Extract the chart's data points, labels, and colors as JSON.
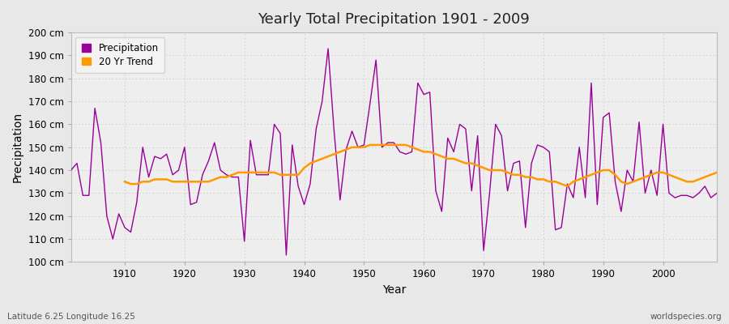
{
  "title": "Yearly Total Precipitation 1901 - 2009",
  "xlabel": "Year",
  "ylabel": "Precipitation",
  "subtitle": "Latitude 6.25 Longitude 16.25",
  "watermark": "worldspecies.org",
  "years": [
    1901,
    1902,
    1903,
    1904,
    1905,
    1906,
    1907,
    1908,
    1909,
    1910,
    1911,
    1912,
    1913,
    1914,
    1915,
    1916,
    1917,
    1918,
    1919,
    1920,
    1921,
    1922,
    1923,
    1924,
    1925,
    1926,
    1927,
    1928,
    1929,
    1930,
    1931,
    1932,
    1933,
    1934,
    1935,
    1936,
    1937,
    1938,
    1939,
    1940,
    1941,
    1942,
    1943,
    1944,
    1945,
    1946,
    1947,
    1948,
    1949,
    1950,
    1951,
    1952,
    1953,
    1954,
    1955,
    1956,
    1957,
    1958,
    1959,
    1960,
    1961,
    1962,
    1963,
    1964,
    1965,
    1966,
    1967,
    1968,
    1969,
    1970,
    1971,
    1972,
    1973,
    1974,
    1975,
    1976,
    1977,
    1978,
    1979,
    1980,
    1981,
    1982,
    1983,
    1984,
    1985,
    1986,
    1987,
    1988,
    1989,
    1990,
    1991,
    1992,
    1993,
    1994,
    1995,
    1996,
    1997,
    1998,
    1999,
    2000,
    2001,
    2002,
    2003,
    2004,
    2005,
    2006,
    2007,
    2008,
    2009
  ],
  "precip": [
    140,
    143,
    129,
    129,
    167,
    152,
    120,
    110,
    121,
    115,
    113,
    126,
    150,
    137,
    146,
    145,
    147,
    138,
    140,
    150,
    125,
    126,
    138,
    144,
    152,
    140,
    138,
    137,
    137,
    109,
    153,
    138,
    138,
    138,
    160,
    156,
    103,
    151,
    133,
    125,
    134,
    158,
    170,
    193,
    157,
    127,
    149,
    157,
    150,
    151,
    169,
    188,
    150,
    152,
    152,
    148,
    147,
    148,
    178,
    173,
    174,
    131,
    122,
    154,
    148,
    160,
    158,
    131,
    155,
    105,
    130,
    160,
    155,
    131,
    143,
    144,
    115,
    143,
    151,
    150,
    148,
    114,
    115,
    134,
    128,
    150,
    128,
    178,
    125,
    163,
    165,
    135,
    122,
    140,
    135,
    161,
    130,
    140,
    129,
    160,
    130,
    128,
    129,
    129,
    128,
    130,
    133,
    128,
    130
  ],
  "trend_years": [
    1910,
    1911,
    1912,
    1913,
    1914,
    1915,
    1916,
    1917,
    1918,
    1919,
    1920,
    1921,
    1922,
    1923,
    1924,
    1925,
    1926,
    1927,
    1928,
    1929,
    1930,
    1931,
    1932,
    1933,
    1934,
    1935,
    1936,
    1937,
    1938,
    1939,
    1940,
    1941,
    1942,
    1943,
    1944,
    1945,
    1946,
    1947,
    1948,
    1949,
    1950,
    1951,
    1952,
    1953,
    1954,
    1955,
    1956,
    1957,
    1958,
    1959,
    1960,
    1961,
    1962,
    1963,
    1964,
    1965,
    1966,
    1967,
    1968,
    1969,
    1970,
    1971,
    1972,
    1973,
    1974,
    1975,
    1976,
    1977,
    1978,
    1979,
    1980,
    1981,
    1982,
    1983,
    1984,
    1985,
    1986,
    1987,
    1988,
    1989,
    1990,
    1991,
    1992,
    1993,
    1994,
    1995,
    1996,
    1997,
    1998,
    1999,
    2000,
    2001,
    2002,
    2003,
    2004,
    2005,
    2006,
    2007,
    2008,
    2009
  ],
  "trend": [
    135,
    134,
    134,
    135,
    135,
    136,
    136,
    136,
    135,
    135,
    135,
    135,
    135,
    135,
    135,
    136,
    137,
    137,
    138,
    139,
    139,
    139,
    139,
    139,
    139,
    139,
    138,
    138,
    138,
    138,
    141,
    143,
    144,
    145,
    146,
    147,
    148,
    149,
    150,
    150,
    150,
    151,
    151,
    151,
    151,
    151,
    151,
    151,
    150,
    149,
    148,
    148,
    147,
    146,
    145,
    145,
    144,
    143,
    143,
    142,
    141,
    140,
    140,
    140,
    139,
    138,
    138,
    137,
    137,
    136,
    136,
    135,
    135,
    134,
    133,
    135,
    136,
    137,
    138,
    139,
    140,
    140,
    138,
    135,
    134,
    135,
    136,
    137,
    138,
    139,
    139,
    138,
    137,
    136,
    135,
    135,
    136,
    137,
    138,
    139
  ],
  "precip_color": "#990099",
  "trend_color": "#FF9900",
  "outer_bg": "#e8e8e8",
  "plot_bg": "#eeeeee",
  "grid_color": "#cccccc",
  "ylim": [
    100,
    200
  ],
  "yticks": [
    100,
    110,
    120,
    130,
    140,
    150,
    160,
    170,
    180,
    190,
    200
  ],
  "xlim": [
    1901,
    2009
  ],
  "xticks": [
    1910,
    1920,
    1930,
    1940,
    1950,
    1960,
    1970,
    1980,
    1990,
    2000
  ],
  "legend_bg": "#f5f5f5",
  "legend_edge": "#cccccc"
}
